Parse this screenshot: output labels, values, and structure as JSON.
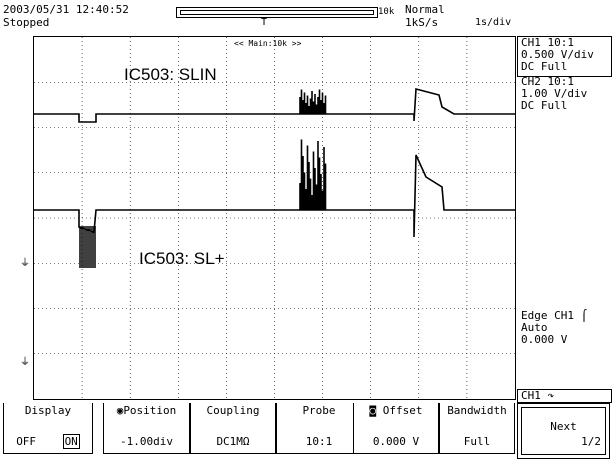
{
  "header": {
    "datetime": "2003/05/31 12:40:52",
    "status": "Stopped",
    "record_length": "10k",
    "trigger_mode": "Normal",
    "sample_rate": "1kS/s",
    "timebase": "1s/div"
  },
  "screen": {
    "main_label": "<< Main:10k >>",
    "annotation_top": "IC503: SLIN",
    "annotation_bottom": "IC503: SL+"
  },
  "right_panel": {
    "ch1_line1": "CH1 10:1",
    "ch1_line2": "0.500 V/div",
    "ch1_line3": "DC   Full",
    "ch2_line1": "CH2 10:1",
    "ch2_line2": "1.00 V/div",
    "ch2_line3": "DC   Full",
    "trig_line1": "Edge CH1",
    "trig_line2": "Auto",
    "trig_line3": "0.000 V",
    "menu_channel": "CH1"
  },
  "softkeys": {
    "display_title": "Display",
    "display_off": "OFF",
    "display_on": "ON",
    "position_title": "Position",
    "position_value": "-1.00div",
    "coupling_title": "Coupling",
    "coupling_value": "DC1MΩ",
    "probe_title": "Probe",
    "probe_value": "10:1",
    "offset_title": "Offset",
    "offset_value": "0.000 V",
    "bandwidth_title": "Bandwidth",
    "bandwidth_value": "Full",
    "next_title": "Next",
    "next_page": "1/2"
  },
  "colors": {
    "ink": "#000000",
    "grid": "#000000",
    "bg": "#ffffff"
  }
}
